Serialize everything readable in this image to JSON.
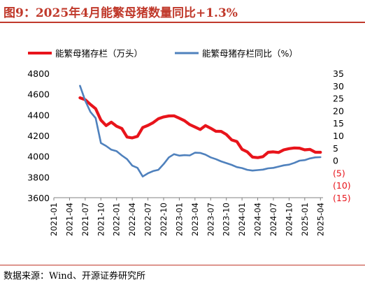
{
  "title": "图9：2025年4月能繁母猪数量同比+1.3%",
  "source": "数据来源：Wind、开源证券研究所",
  "colors": {
    "accent": "#c0392b",
    "stock": "#e8141b",
    "yoy": "#4f81bd",
    "negative_tick": "#e8141b"
  },
  "chart_data": {
    "type": "line",
    "legend_position": "top",
    "grid": false,
    "x_ticks": [
      "2021-01",
      "2021-04",
      "2021-07",
      "2021-10",
      "2022-01",
      "2022-04",
      "2022-07",
      "2022-10",
      "2023-01",
      "2023-04",
      "2023-07",
      "2023-10",
      "2024-01",
      "2024-04",
      "2024-07",
      "2024-10",
      "2025-01",
      "2025-04"
    ],
    "y_left": {
      "min": 3600,
      "max": 4800,
      "ticks": [
        "3600",
        "3800",
        "4000",
        "4200",
        "4400",
        "4600",
        "4800"
      ]
    },
    "y_right": {
      "min": -15,
      "max": 35,
      "ticks": [
        "(15)",
        "(10)",
        "(5)",
        "0",
        "5",
        "10",
        "15",
        "20",
        "25",
        "30",
        "35"
      ]
    },
    "series": [
      {
        "name": "能繁母猪存栏（万头）",
        "axis": "left",
        "points": [
          [
            "2021-06",
            4564
          ],
          [
            "2021-07",
            4545
          ],
          [
            "2021-08",
            4500
          ],
          [
            "2021-09",
            4459
          ],
          [
            "2021-10",
            4348
          ],
          [
            "2021-11",
            4296
          ],
          [
            "2021-12",
            4329
          ],
          [
            "2022-01",
            4290
          ],
          [
            "2022-02",
            4268
          ],
          [
            "2022-03",
            4185
          ],
          [
            "2022-04",
            4177
          ],
          [
            "2022-05",
            4192
          ],
          [
            "2022-06",
            4277
          ],
          [
            "2022-07",
            4298
          ],
          [
            "2022-08",
            4324
          ],
          [
            "2022-09",
            4362
          ],
          [
            "2022-10",
            4379
          ],
          [
            "2022-11",
            4389
          ],
          [
            "2022-12",
            4390
          ],
          [
            "2023-01",
            4367
          ],
          [
            "2023-02",
            4343
          ],
          [
            "2023-03",
            4305
          ],
          [
            "2023-04",
            4282
          ],
          [
            "2023-05",
            4258
          ],
          [
            "2023-06",
            4296
          ],
          [
            "2023-07",
            4270
          ],
          [
            "2023-08",
            4241
          ],
          [
            "2023-09",
            4240
          ],
          [
            "2023-10",
            4210
          ],
          [
            "2023-11",
            4158
          ],
          [
            "2023-12",
            4142
          ],
          [
            "2024-01",
            4067
          ],
          [
            "2024-02",
            4042
          ],
          [
            "2024-03",
            3992
          ],
          [
            "2024-04",
            3986
          ],
          [
            "2024-05",
            3996
          ],
          [
            "2024-06",
            4038
          ],
          [
            "2024-07",
            4042
          ],
          [
            "2024-08",
            4036
          ],
          [
            "2024-09",
            4062
          ],
          [
            "2024-10",
            4073
          ],
          [
            "2024-11",
            4080
          ],
          [
            "2024-12",
            4078
          ],
          [
            "2025-01",
            4062
          ],
          [
            "2025-02",
            4066
          ],
          [
            "2025-03",
            4039
          ],
          [
            "2025-04",
            4038
          ]
        ]
      },
      {
        "name": "能繁母猪存栏同比（%）",
        "axis": "right",
        "points": [
          [
            "2021-06",
            30.0
          ],
          [
            "2021-07",
            24.0
          ],
          [
            "2021-08",
            19.5
          ],
          [
            "2021-09",
            17.0
          ],
          [
            "2021-10",
            7.0
          ],
          [
            "2021-11",
            5.8
          ],
          [
            "2021-12",
            4.3
          ],
          [
            "2022-01",
            3.7
          ],
          [
            "2022-02",
            2.0
          ],
          [
            "2022-03",
            0.5
          ],
          [
            "2022-04",
            -2.1
          ],
          [
            "2022-05",
            -3.0
          ],
          [
            "2022-06",
            -6.5
          ],
          [
            "2022-07",
            -5.2
          ],
          [
            "2022-08",
            -4.3
          ],
          [
            "2022-09",
            -3.8
          ],
          [
            "2022-10",
            -1.5
          ],
          [
            "2022-11",
            1.2
          ],
          [
            "2022-12",
            2.5
          ],
          [
            "2023-01",
            1.9
          ],
          [
            "2023-02",
            2.1
          ],
          [
            "2023-03",
            2.0
          ],
          [
            "2023-04",
            3.1
          ],
          [
            "2023-05",
            3.0
          ],
          [
            "2023-06",
            2.3
          ],
          [
            "2023-07",
            1.2
          ],
          [
            "2023-08",
            0.5
          ],
          [
            "2023-09",
            -0.4
          ],
          [
            "2023-10",
            -1.1
          ],
          [
            "2023-11",
            -1.8
          ],
          [
            "2023-12",
            -2.7
          ],
          [
            "2024-01",
            -3.1
          ],
          [
            "2024-02",
            -3.8
          ],
          [
            "2024-03",
            -4.1
          ],
          [
            "2024-04",
            -3.9
          ],
          [
            "2024-05",
            -3.7
          ],
          [
            "2024-06",
            -3.2
          ],
          [
            "2024-07",
            -3.0
          ],
          [
            "2024-08",
            -2.5
          ],
          [
            "2024-09",
            -2.0
          ],
          [
            "2024-10",
            -1.7
          ],
          [
            "2024-11",
            -1.0
          ],
          [
            "2024-12",
            -0.1
          ],
          [
            "2025-01",
            0.1
          ],
          [
            "2025-02",
            0.8
          ],
          [
            "2025-03",
            1.2
          ],
          [
            "2025-04",
            1.3
          ]
        ]
      }
    ]
  }
}
